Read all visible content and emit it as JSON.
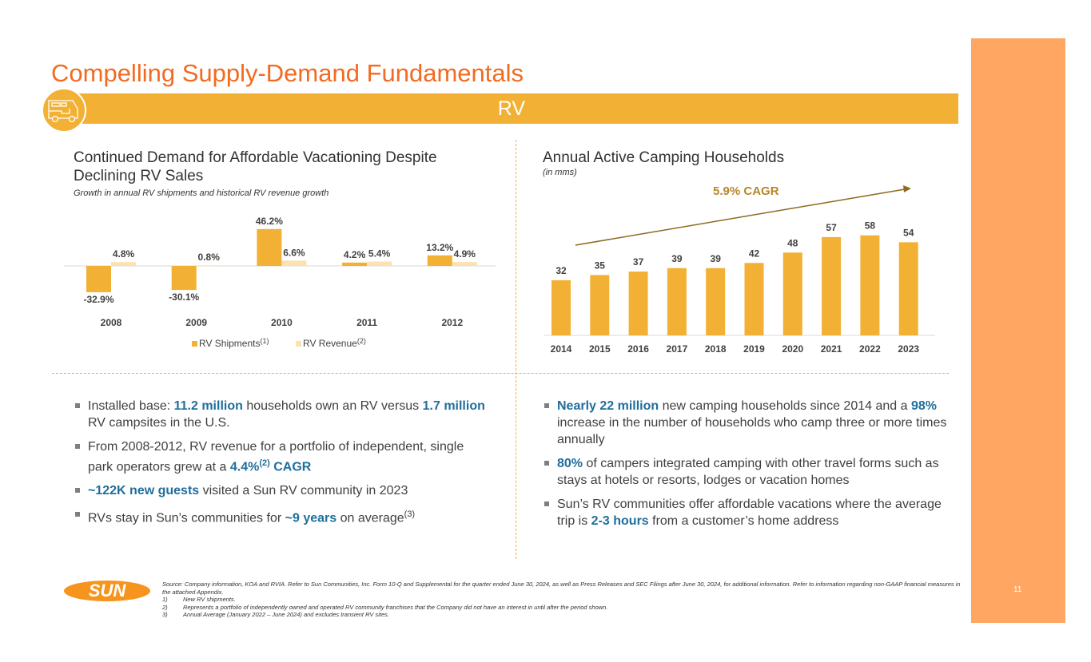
{
  "title": "Compelling Supply-Demand Fundamentals",
  "band_label": "RV",
  "page_number": "11",
  "colors": {
    "title": "#F26B21",
    "band": "#F2B134",
    "shipments": "#F2B134",
    "revenue": "#FBE2B0",
    "highlight": "#1F6E9C",
    "side_panel": "#FFA662"
  },
  "left": {
    "heading": "Continued Demand for Affordable Vacationing Despite Declining RV Sales",
    "subheading": "Growth in annual RV shipments and historical RV revenue growth",
    "bullets": [
      {
        "parts": [
          {
            "t": "Installed base: "
          },
          {
            "t": "11.2 million",
            "h": true
          },
          {
            "t": " households own an RV versus "
          },
          {
            "t": "1.7 million",
            "h": true
          },
          {
            "t": " RV campsites in the U.S."
          }
        ]
      },
      {
        "parts": [
          {
            "t": "From 2008-2012, RV revenue for a portfolio of independent, single park operators grew at a "
          },
          {
            "t": "4.4%",
            "h": true
          },
          {
            "t": "(2)",
            "sup": true,
            "h": true
          },
          {
            "t": " CAGR",
            "h": true
          }
        ]
      },
      {
        "parts": [
          {
            "t": "~122K new guests",
            "h": true
          },
          {
            "t": " visited a Sun RV community in 2023"
          }
        ]
      },
      {
        "parts": [
          {
            "t": "RVs stay in Sun’s communities for "
          },
          {
            "t": "~9 years",
            "h": true
          },
          {
            "t": " on average"
          },
          {
            "t": "(3)",
            "sup": true
          }
        ]
      }
    ]
  },
  "right": {
    "heading": "Annual Active Camping Households",
    "subheading": "(in mms)",
    "bullets": [
      {
        "parts": [
          {
            "t": "Nearly 22 million",
            "h": true
          },
          {
            "t": " new camping households since 2014 and a "
          },
          {
            "t": "98%",
            "h": true
          },
          {
            "t": " increase in the number of households who camp three or more times annually"
          }
        ]
      },
      {
        "parts": [
          {
            "t": "80%",
            "h": true
          },
          {
            "t": " of campers integrated camping with other travel forms such as stays at hotels or resorts, lodges or vacation homes"
          }
        ]
      },
      {
        "parts": [
          {
            "t": "Sun’s RV communities offer affordable vacations where the average trip is "
          },
          {
            "t": "2-3 hours",
            "h": true
          },
          {
            "t": " from a customer’s home address"
          }
        ]
      }
    ]
  },
  "chart_data": [
    {
      "type": "bar",
      "categories": [
        "2008",
        "2009",
        "2010",
        "2011",
        "2012"
      ],
      "series": [
        {
          "name": "RV Shipments",
          "sup": "(1)",
          "values": [
            -32.9,
            -30.1,
            46.2,
            4.2,
            13.2
          ],
          "labels": [
            "-32.9%",
            "-30.1%",
            "46.2%",
            "4.2%",
            "13.2%"
          ]
        },
        {
          "name": "RV Revenue",
          "sup": "(2)",
          "values": [
            4.8,
            0.8,
            6.6,
            5.4,
            4.9
          ],
          "labels": [
            "4.8%",
            "0.8%",
            "6.6%",
            "5.4%",
            "4.9%"
          ]
        }
      ],
      "legend": "bottom",
      "grid": false
    },
    {
      "type": "bar",
      "categories": [
        "2014",
        "2015",
        "2016",
        "2017",
        "2018",
        "2019",
        "2020",
        "2021",
        "2022",
        "2023"
      ],
      "values": [
        32,
        35,
        37,
        39,
        39,
        42,
        48,
        57,
        58,
        54
      ],
      "annotation": "5.9% CAGR",
      "grid": false
    }
  ],
  "footer": {
    "logo": "SUN",
    "source": "Source: Company information, KOA and RVIA. Refer to Sun Communities, Inc. Form 10-Q and Supplemental for the quarter ended June 30, 2024, as well as Press Releases and SEC Filings after June 30, 2024, for additional information. Refer to information regarding non-GAAP financial measures in the attached Appendix.",
    "notes": [
      {
        "n": "1)",
        "t": "New RV shipments."
      },
      {
        "n": "2)",
        "t": "Represents a portfolio of independently owned and operated RV community franchises that the Company did not have an interest in until after the period shown."
      },
      {
        "n": "3)",
        "t": "Annual Average (January 2022 – June 2024) and excludes transient RV sites."
      }
    ]
  }
}
